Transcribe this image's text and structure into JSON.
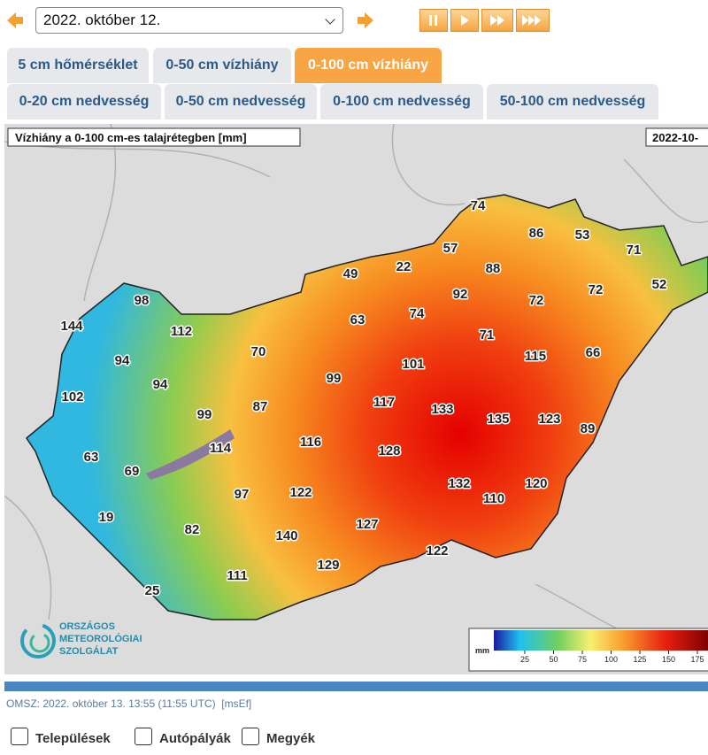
{
  "date_select": "2022. október 12.",
  "tabs_row1": [
    "5 cm hőmérséklet",
    "0-50 cm vízhiány",
    "0-100 cm vízhiány"
  ],
  "tabs_row2": [
    "0-20 cm nedvesség",
    "0-50 cm nedvesség",
    "0-100 cm nedvesség",
    "50-100 cm nedvesség"
  ],
  "active_tab": 2,
  "map": {
    "title": "Vízhiány a 0-100 cm-es talajrétegben [mm]",
    "date": "2022-10-",
    "labels": [
      74,
      86,
      53,
      71,
      57,
      22,
      49,
      88,
      92,
      72,
      72,
      52,
      98,
      144,
      112,
      63,
      74,
      71,
      70,
      115,
      66,
      94,
      101,
      99,
      94,
      102,
      117,
      87,
      133,
      99,
      135,
      123,
      89,
      116,
      114,
      128,
      63,
      69,
      132,
      120,
      97,
      122,
      110,
      19,
      127,
      82,
      140,
      122,
      129,
      111,
      25
    ],
    "legend": {
      "unit": "mm",
      "ticks": [
        25,
        50,
        75,
        100,
        125,
        150,
        175
      ]
    },
    "logo": [
      "ORSZÁGOS",
      "METEOROLÓGIAI",
      "SZOLGÁLAT"
    ]
  },
  "footer": {
    "source": "OMSZ:",
    "timestamp": "2022. október 13. 13:55 (11:55 UTC)",
    "tag": "[msEf]"
  },
  "checkboxes": [
    "Települések",
    "Autópályák",
    "Megyék"
  ]
}
